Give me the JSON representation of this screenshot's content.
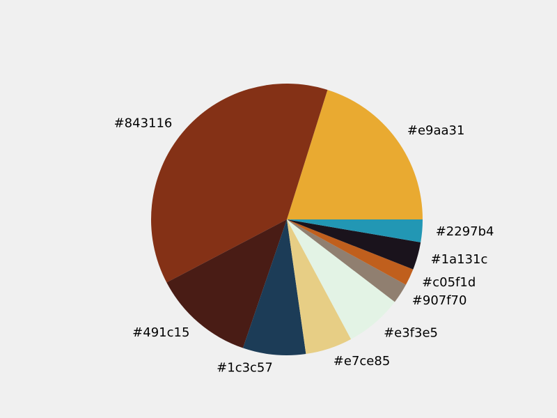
{
  "chart_data": {
    "type": "pie",
    "title": "",
    "start_angle_deg": 0,
    "direction": "counterclockwise",
    "legend": "none",
    "slices": [
      {
        "label": "#e9aa31",
        "color": "#e9aa31",
        "value": 20.2
      },
      {
        "label": "#843116",
        "color": "#843116",
        "value": 37.6
      },
      {
        "label": "#491c15",
        "color": "#491c15",
        "value": 12.1
      },
      {
        "label": "#1c3c57",
        "color": "#1c3c57",
        "value": 7.5
      },
      {
        "label": "#e7ce85",
        "color": "#e7ce85",
        "value": 5.6
      },
      {
        "label": "#e3f3e5",
        "color": "#e3f3e5",
        "value": 6.8
      },
      {
        "label": "#907f70",
        "color": "#907f70",
        "value": 2.4
      },
      {
        "label": "#c05f1d",
        "color": "#c05f1d",
        "value": 2.0
      },
      {
        "label": "#1a131c",
        "color": "#1a131c",
        "value": 3.3
      },
      {
        "label": "#2297b4",
        "color": "#2297b4",
        "value": 2.7
      }
    ]
  },
  "colors": {
    "background": "#f0f0f0"
  }
}
